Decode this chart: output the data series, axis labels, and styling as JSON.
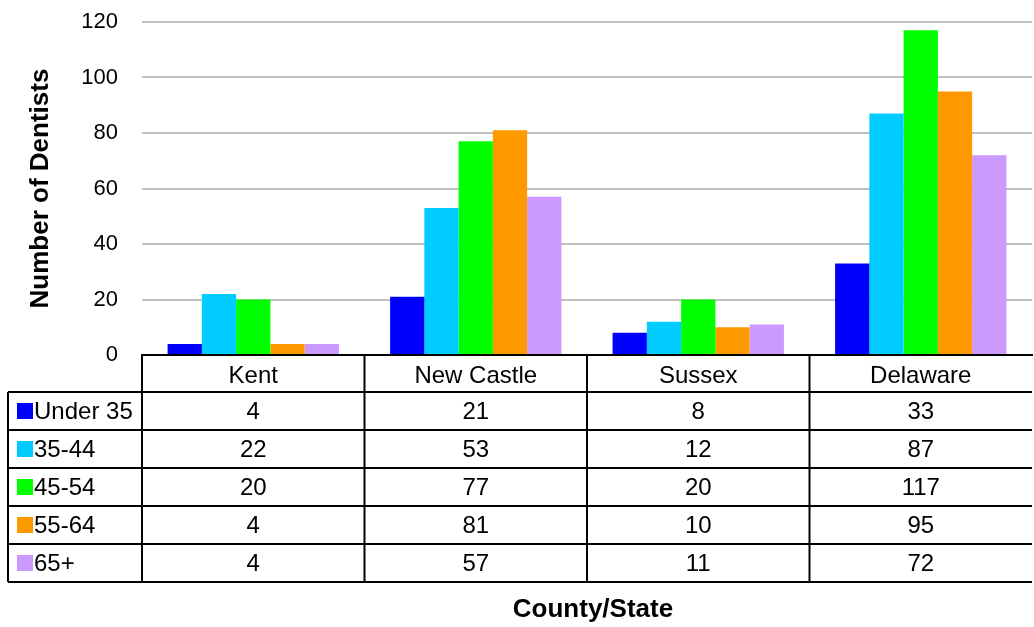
{
  "chart_data": {
    "type": "bar",
    "ylabel": "Number of Dentists",
    "annotations": [
      "County/State"
    ],
    "categories": [
      "Kent",
      "New Castle",
      "Sussex",
      "Delaware"
    ],
    "series": [
      {
        "name": "Under 35",
        "color": "#0000ff",
        "values": [
          4,
          21,
          8,
          33
        ]
      },
      {
        "name": "35-44",
        "color": "#00ccff",
        "values": [
          22,
          53,
          12,
          87
        ]
      },
      {
        "name": "45-54",
        "color": "#00ff00",
        "values": [
          20,
          77,
          20,
          117
        ]
      },
      {
        "name": "55-64",
        "color": "#ff9900",
        "values": [
          4,
          81,
          10,
          95
        ]
      },
      {
        "name": "65+",
        "color": "#cc99ff",
        "values": [
          4,
          57,
          11,
          72
        ]
      }
    ],
    "ylim": [
      0,
      120
    ],
    "yticks": [
      0,
      20,
      40,
      60,
      80,
      100,
      120
    ],
    "grid": "y",
    "legend": "bottom left",
    "data_labels": true
  }
}
